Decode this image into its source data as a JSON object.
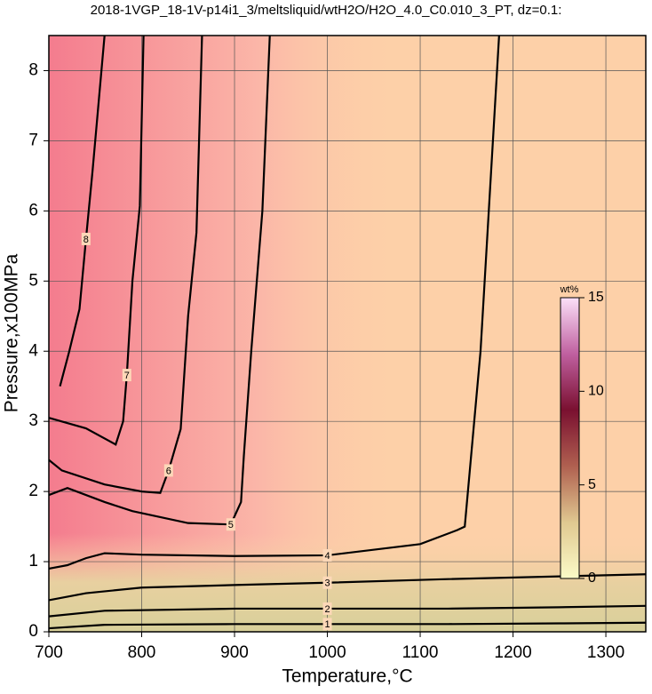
{
  "chart_data": {
    "type": "contour",
    "title": "2018-1VGP_18-1V-p14i1_3/meltsliquid/wtH2O/H2O_4.0_C0.010_3_PT, dz=0.1:",
    "x_label": "Temperature,°C",
    "y_label": "Pressure,x100MPa",
    "xlim": [
      700,
      1343
    ],
    "ylim": [
      0,
      8.5
    ],
    "xticks": [
      700,
      800,
      900,
      1000,
      1100,
      1200,
      1300
    ],
    "yticks": [
      0,
      1,
      2,
      3,
      4,
      5,
      6,
      7,
      8
    ],
    "grid": true,
    "contours": [
      {
        "level": 1,
        "x": [
          700,
          760,
          900,
          1000,
          1130,
          1250,
          1343
        ],
        "y": [
          0.05,
          0.1,
          0.11,
          0.11,
          0.11,
          0.12,
          0.13
        ]
      },
      {
        "level": 2,
        "x": [
          700,
          760,
          900,
          1000,
          1130,
          1250,
          1343
        ],
        "y": [
          0.22,
          0.3,
          0.33,
          0.33,
          0.33,
          0.35,
          0.37
        ]
      },
      {
        "level": 3,
        "x": [
          700,
          740,
          800,
          908,
          1000,
          1126,
          1250,
          1343
        ],
        "y": [
          0.45,
          0.55,
          0.63,
          0.67,
          0.7,
          0.75,
          0.79,
          0.82
        ]
      },
      {
        "level": 4,
        "x": [
          700,
          720,
          740,
          760,
          800,
          900,
          1000,
          1100,
          1140,
          1148,
          1165,
          1185
        ],
        "y": [
          0.9,
          0.95,
          1.05,
          1.12,
          1.1,
          1.08,
          1.09,
          1.25,
          1.45,
          1.5,
          4.0,
          8.5
        ]
      },
      {
        "level": 5,
        "x": [
          700,
          720,
          760,
          790,
          850,
          896,
          907,
          910,
          918,
          930,
          938
        ],
        "y": [
          1.95,
          2.05,
          1.85,
          1.72,
          1.55,
          1.53,
          1.85,
          2.5,
          4.0,
          6.0,
          8.5
        ]
      },
      {
        "level": 6,
        "x": [
          700,
          714,
          760,
          800,
          820,
          829,
          842,
          850,
          859,
          865
        ],
        "y": [
          2.45,
          2.3,
          2.1,
          2.0,
          1.98,
          2.3,
          2.89,
          4.5,
          5.69,
          8.5
        ]
      },
      {
        "level": 7,
        "x": [
          700,
          740,
          772,
          780,
          784,
          790,
          798,
          802
        ],
        "y": [
          3.05,
          2.9,
          2.67,
          3.0,
          3.66,
          5.0,
          6.07,
          8.5
        ]
      },
      {
        "level": 8,
        "x": [
          712,
          722,
          733,
          740,
          747,
          760
        ],
        "y": [
          3.5,
          4.0,
          4.6,
          5.6,
          6.56,
          8.5
        ]
      }
    ],
    "colorbar": {
      "label": "wt%",
      "lim": [
        0,
        15
      ],
      "ticks": [
        0,
        5,
        10,
        15
      ],
      "colors": [
        "#fbfbc8",
        "#e0c890",
        "#b06050",
        "#7a1030",
        "#c060a0",
        "#fbe0f8"
      ]
    }
  }
}
